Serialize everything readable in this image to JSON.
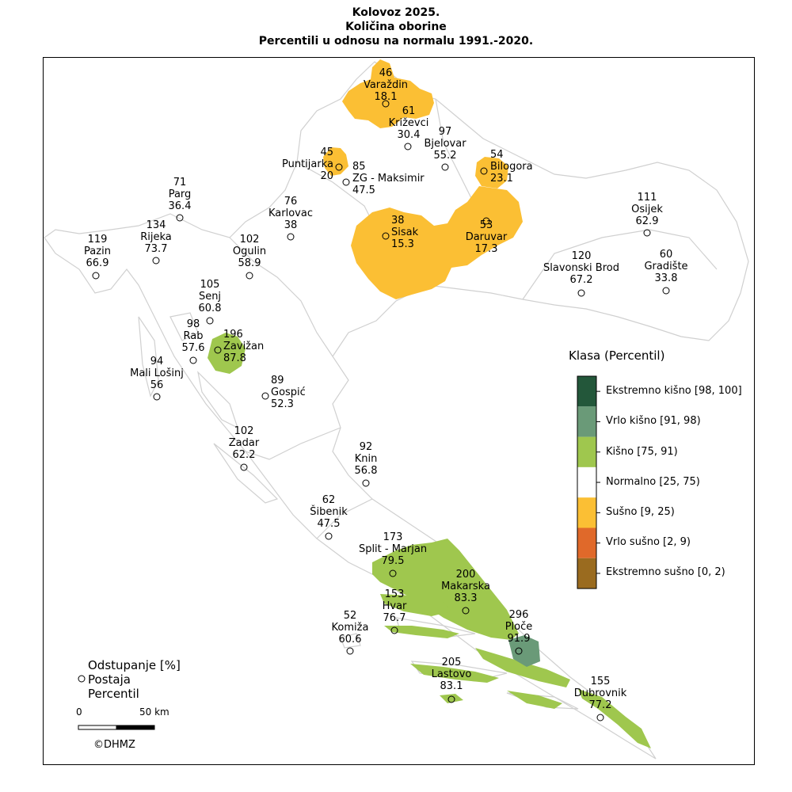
{
  "title": {
    "line1": "Kolovoz 2025.",
    "line2": "Količina oborine",
    "line3": "Percentili u odnosu na normalu 1991.-2020."
  },
  "legend": {
    "title": "Klasa (Percentil)",
    "items": [
      {
        "label": "Ekstremno kišno [98, 100]",
        "color": "#23573a"
      },
      {
        "label": "Vrlo kišno [91, 98)",
        "color": "#6a9a78"
      },
      {
        "label": "Kišno [75, 91)",
        "color": "#9fc74e"
      },
      {
        "label": "Normalno [25, 75)",
        "color": "#ffffff"
      },
      {
        "label": "Sušno [9, 25)",
        "color": "#fbbf34"
      },
      {
        "label": "Vrlo sušno [2, 9)",
        "color": "#e0692a"
      },
      {
        "label": "Ekstremno sušno [0, 2)",
        "color": "#9a6b1f"
      }
    ]
  },
  "key": {
    "line1": "Odstupanje [%]",
    "line2": "Postaja",
    "line3": "Percentil"
  },
  "scale": {
    "zero": "0",
    "fifty": "50 km"
  },
  "credit": "©DHMZ",
  "stations": [
    {
      "name": "Varaždin",
      "deviation": "46",
      "percentile": "18.1"
    },
    {
      "name": "Križevci",
      "deviation": "61",
      "percentile": "30.4"
    },
    {
      "name": "Bjelovar",
      "deviation": "97",
      "percentile": "55.2"
    },
    {
      "name": "Bilogora",
      "deviation": "54",
      "percentile": "23.1"
    },
    {
      "name": "Puntijarka",
      "deviation": "45",
      "percentile": "20"
    },
    {
      "name": "ZG - Maksimir",
      "deviation": "85",
      "percentile": "47.5"
    },
    {
      "name": "Parg",
      "deviation": "71",
      "percentile": "36.4"
    },
    {
      "name": "Karlovac",
      "deviation": "76",
      "percentile": "38"
    },
    {
      "name": "Sisak",
      "deviation": "38",
      "percentile": "15.3"
    },
    {
      "name": "Daruvar",
      "deviation": "53",
      "percentile": "17.3"
    },
    {
      "name": "Osijek",
      "deviation": "111",
      "percentile": "62.9"
    },
    {
      "name": "Rijeka",
      "deviation": "134",
      "percentile": "73.7"
    },
    {
      "name": "Pazin",
      "deviation": "119",
      "percentile": "66.9"
    },
    {
      "name": "Ogulin",
      "deviation": "102",
      "percentile": "58.9"
    },
    {
      "name": "Slavonski Brod",
      "deviation": "120",
      "percentile": "67.2"
    },
    {
      "name": "Gradište",
      "deviation": "60",
      "percentile": "33.8"
    },
    {
      "name": "Senj",
      "deviation": "105",
      "percentile": "60.8"
    },
    {
      "name": "Rab",
      "deviation": "98",
      "percentile": "57.6"
    },
    {
      "name": "Zavižan",
      "deviation": "196",
      "percentile": "87.8"
    },
    {
      "name": "Mali Lošinj",
      "deviation": "94",
      "percentile": "56"
    },
    {
      "name": "Gospić",
      "deviation": "89",
      "percentile": "52.3"
    },
    {
      "name": "Zadar",
      "deviation": "102",
      "percentile": "62.2"
    },
    {
      "name": "Knin",
      "deviation": "92",
      "percentile": "56.8"
    },
    {
      "name": "Šibenik",
      "deviation": "62",
      "percentile": "47.5"
    },
    {
      "name": "Split - Marjan",
      "deviation": "173",
      "percentile": "79.5"
    },
    {
      "name": "Makarska",
      "deviation": "200",
      "percentile": "83.3"
    },
    {
      "name": "Hvar",
      "deviation": "153",
      "percentile": "76.7"
    },
    {
      "name": "Komiža",
      "deviation": "52",
      "percentile": "60.6"
    },
    {
      "name": "Ploče",
      "deviation": "296",
      "percentile": "91.9"
    },
    {
      "name": "Lastovo",
      "deviation": "205",
      "percentile": "83.1"
    },
    {
      "name": "Dubrovnik",
      "deviation": "155",
      "percentile": "77.2"
    }
  ]
}
